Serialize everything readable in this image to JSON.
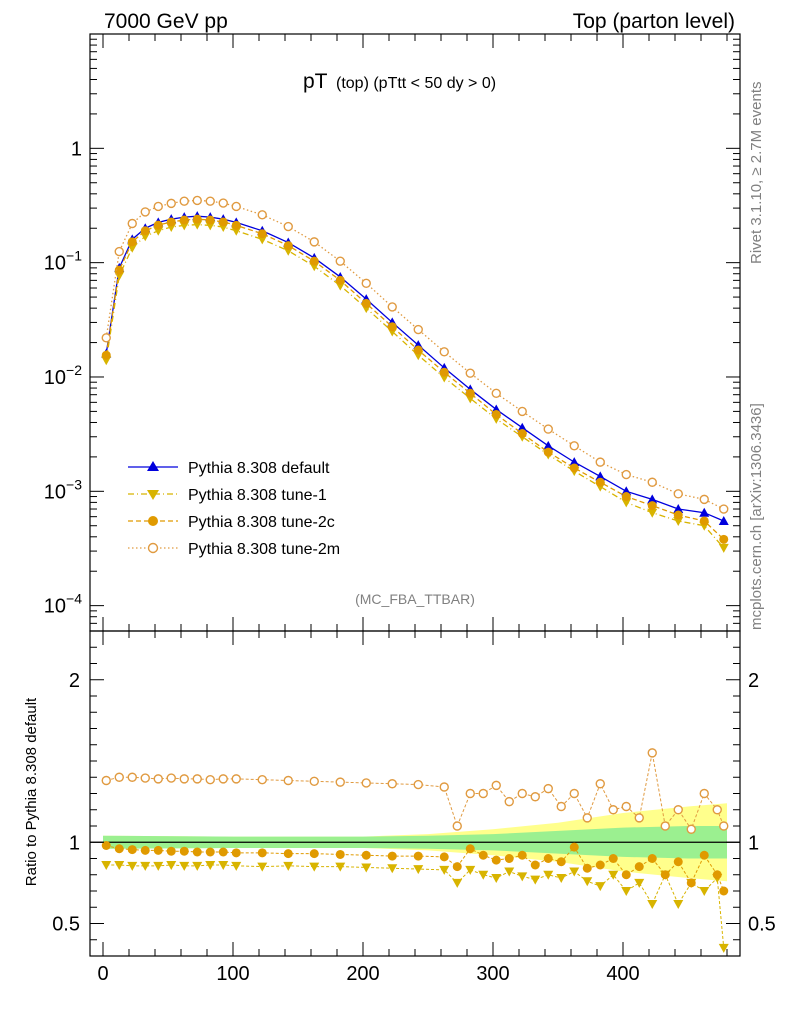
{
  "header": {
    "left": "7000 GeV pp",
    "right": "Top (parton level)"
  },
  "side_labels": {
    "rivet": "Rivet 3.1.10, ≥ 2.7M events",
    "mcplots": "mcplots.cern.ch [arXiv:1306.3436]"
  },
  "chart_data": [
    {
      "type": "line",
      "title_main": "pT",
      "title_sub": "(top)  (pTtt < 50 dy > 0)",
      "analysis": "(MC_FBA_TTBAR)",
      "yscale": "log",
      "ylim": [
        6e-05,
        10
      ],
      "xlim": [
        -10,
        490
      ],
      "yticks": [
        {
          "value": 1,
          "base": "1",
          "exp": ""
        },
        {
          "value": 0.1,
          "base": "10",
          "exp": "−1"
        },
        {
          "value": 0.01,
          "base": "10",
          "exp": "−2"
        },
        {
          "value": 0.001,
          "base": "10",
          "exp": "−3"
        },
        {
          "value": 0.0001,
          "base": "10",
          "exp": "−4"
        }
      ],
      "legend": [
        "Pythia 8.308 default",
        "Pythia 8.308 tune-1",
        "Pythia 8.308 tune-2c",
        "Pythia 8.308 tune-2m"
      ],
      "series": [
        {
          "name": "Pythia 8.308 default",
          "color": "#0000dd",
          "marker": "triangle-up",
          "style": "solid",
          "x": [
            2.5,
            12.5,
            22.5,
            32.5,
            42.5,
            52.5,
            62.5,
            72.5,
            82.5,
            92.5,
            102.5,
            122.5,
            142.5,
            162.5,
            182.5,
            202.5,
            222.5,
            242.5,
            262.5,
            282.5,
            302.5,
            322.5,
            342.5,
            362.5,
            382.5,
            402.5,
            422.5,
            442.5,
            462.5,
            477.5
          ],
          "y": [
            0.016,
            0.09,
            0.16,
            0.2,
            0.225,
            0.24,
            0.25,
            0.255,
            0.25,
            0.24,
            0.225,
            0.19,
            0.15,
            0.11,
            0.075,
            0.048,
            0.03,
            0.019,
            0.012,
            0.0078,
            0.0052,
            0.0036,
            0.0025,
            0.0018,
            0.00135,
            0.001,
            0.00085,
            0.0007,
            0.00065,
            0.00055
          ]
        },
        {
          "name": "Pythia 8.308 tune-1",
          "color": "#d8b400",
          "marker": "triangle-down",
          "style": "dashdot",
          "x": [
            2.5,
            12.5,
            22.5,
            32.5,
            42.5,
            52.5,
            62.5,
            72.5,
            82.5,
            92.5,
            102.5,
            122.5,
            142.5,
            162.5,
            182.5,
            202.5,
            222.5,
            242.5,
            262.5,
            282.5,
            302.5,
            322.5,
            342.5,
            362.5,
            382.5,
            402.5,
            422.5,
            442.5,
            462.5,
            477.5
          ],
          "y": [
            0.014,
            0.077,
            0.135,
            0.17,
            0.19,
            0.205,
            0.212,
            0.215,
            0.212,
            0.205,
            0.19,
            0.16,
            0.127,
            0.093,
            0.063,
            0.04,
            0.025,
            0.0155,
            0.0099,
            0.0065,
            0.0043,
            0.003,
            0.0021,
            0.0015,
            0.0011,
            0.0008,
            0.00065,
            0.00055,
            0.0005,
            0.00032
          ]
        },
        {
          "name": "Pythia 8.308 tune-2c",
          "color": "#e09a00",
          "marker": "circle",
          "style": "dashed",
          "x": [
            2.5,
            12.5,
            22.5,
            32.5,
            42.5,
            52.5,
            62.5,
            72.5,
            82.5,
            92.5,
            102.5,
            122.5,
            142.5,
            162.5,
            182.5,
            202.5,
            222.5,
            242.5,
            262.5,
            282.5,
            302.5,
            322.5,
            342.5,
            362.5,
            382.5,
            402.5,
            422.5,
            442.5,
            462.5,
            477.5
          ],
          "y": [
            0.0155,
            0.086,
            0.152,
            0.19,
            0.213,
            0.227,
            0.236,
            0.24,
            0.236,
            0.227,
            0.212,
            0.179,
            0.141,
            0.103,
            0.07,
            0.044,
            0.0275,
            0.0172,
            0.011,
            0.0072,
            0.0047,
            0.0032,
            0.0022,
            0.0016,
            0.0012,
            0.0009,
            0.00075,
            0.00062,
            0.00055,
            0.00038
          ]
        },
        {
          "name": "Pythia 8.308 tune-2m",
          "color": "#e09a40",
          "marker": "circle-open",
          "style": "dotted",
          "x": [
            2.5,
            12.5,
            22.5,
            32.5,
            42.5,
            52.5,
            62.5,
            72.5,
            82.5,
            92.5,
            102.5,
            122.5,
            142.5,
            162.5,
            182.5,
            202.5,
            222.5,
            242.5,
            262.5,
            282.5,
            302.5,
            322.5,
            342.5,
            362.5,
            382.5,
            402.5,
            422.5,
            442.5,
            462.5,
            477.5
          ],
          "y": [
            0.022,
            0.125,
            0.22,
            0.278,
            0.31,
            0.33,
            0.345,
            0.35,
            0.345,
            0.332,
            0.31,
            0.262,
            0.207,
            0.152,
            0.103,
            0.066,
            0.041,
            0.026,
            0.0166,
            0.0108,
            0.0072,
            0.005,
            0.0035,
            0.0025,
            0.0018,
            0.0014,
            0.0012,
            0.00095,
            0.00085,
            0.0007
          ]
        }
      ]
    },
    {
      "type": "line",
      "ylabel": "Ratio to Pythia 8.308 default",
      "ylim": [
        0.3,
        2.3
      ],
      "xlim": [
        -10,
        490
      ],
      "yticks": [
        2,
        1,
        0.5
      ],
      "xticks": [
        0,
        100,
        200,
        300,
        400
      ],
      "band": {
        "x": [
          0,
          100,
          200,
          250,
          300,
          350,
          400,
          450,
          480
        ],
        "inner": [
          0.04,
          0.035,
          0.035,
          0.04,
          0.05,
          0.07,
          0.09,
          0.1,
          0.1
        ],
        "outer": [
          0.04,
          0.035,
          0.035,
          0.05,
          0.08,
          0.12,
          0.18,
          0.22,
          0.24
        ]
      },
      "series": [
        {
          "name": "Pythia 8.308 default",
          "color": "#000000",
          "x": [
            -10,
            490
          ],
          "values": [
            1,
            1
          ]
        },
        {
          "name": "Pythia 8.308 tune-1",
          "color": "#d8b400",
          "marker": "triangle-down",
          "x": [
            2.5,
            12.5,
            22.5,
            32.5,
            42.5,
            52.5,
            62.5,
            72.5,
            82.5,
            92.5,
            102.5,
            122.5,
            142.5,
            162.5,
            182.5,
            202.5,
            222.5,
            242.5,
            262.5,
            272.5,
            282.5,
            292.5,
            302.5,
            312.5,
            322.5,
            332.5,
            342.5,
            352.5,
            362.5,
            372.5,
            382.5,
            392.5,
            402.5,
            412.5,
            422.5,
            432.5,
            442.5,
            452.5,
            462.5,
            472.5,
            477.5
          ],
          "values": [
            0.86,
            0.86,
            0.855,
            0.855,
            0.855,
            0.86,
            0.855,
            0.855,
            0.86,
            0.86,
            0.855,
            0.85,
            0.855,
            0.85,
            0.85,
            0.845,
            0.84,
            0.835,
            0.83,
            0.75,
            0.83,
            0.8,
            0.78,
            0.82,
            0.79,
            0.77,
            0.8,
            0.78,
            0.82,
            0.76,
            0.73,
            0.8,
            0.7,
            0.75,
            0.62,
            0.8,
            0.62,
            0.75,
            0.7,
            0.78,
            0.35
          ]
        },
        {
          "name": "Pythia 8.308 tune-2c",
          "color": "#e09a00",
          "marker": "circle",
          "x": [
            2.5,
            12.5,
            22.5,
            32.5,
            42.5,
            52.5,
            62.5,
            72.5,
            82.5,
            92.5,
            102.5,
            122.5,
            142.5,
            162.5,
            182.5,
            202.5,
            222.5,
            242.5,
            262.5,
            272.5,
            282.5,
            292.5,
            302.5,
            312.5,
            322.5,
            332.5,
            342.5,
            352.5,
            362.5,
            372.5,
            382.5,
            392.5,
            402.5,
            412.5,
            422.5,
            432.5,
            442.5,
            452.5,
            462.5,
            472.5,
            477.5
          ],
          "values": [
            0.98,
            0.96,
            0.955,
            0.95,
            0.95,
            0.945,
            0.945,
            0.94,
            0.94,
            0.94,
            0.935,
            0.935,
            0.93,
            0.93,
            0.925,
            0.92,
            0.915,
            0.915,
            0.91,
            0.85,
            0.96,
            0.92,
            0.89,
            0.9,
            0.92,
            0.86,
            0.9,
            0.88,
            0.97,
            0.84,
            0.86,
            0.9,
            0.8,
            0.85,
            0.9,
            0.8,
            0.88,
            0.75,
            0.92,
            0.8,
            0.7
          ]
        },
        {
          "name": "Pythia 8.308 tune-2m",
          "color": "#e09a40",
          "marker": "circle-open",
          "x": [
            2.5,
            12.5,
            22.5,
            32.5,
            42.5,
            52.5,
            62.5,
            72.5,
            82.5,
            92.5,
            102.5,
            122.5,
            142.5,
            162.5,
            182.5,
            202.5,
            222.5,
            242.5,
            262.5,
            272.5,
            282.5,
            292.5,
            302.5,
            312.5,
            322.5,
            332.5,
            342.5,
            352.5,
            362.5,
            372.5,
            382.5,
            392.5,
            402.5,
            412.5,
            422.5,
            432.5,
            442.5,
            452.5,
            462.5,
            472.5,
            477.5
          ],
          "values": [
            1.38,
            1.4,
            1.4,
            1.395,
            1.39,
            1.395,
            1.39,
            1.39,
            1.385,
            1.39,
            1.39,
            1.385,
            1.38,
            1.375,
            1.37,
            1.365,
            1.36,
            1.355,
            1.34,
            1.1,
            1.3,
            1.3,
            1.35,
            1.25,
            1.3,
            1.28,
            1.33,
            1.22,
            1.3,
            1.15,
            1.36,
            1.2,
            1.22,
            1.15,
            1.55,
            1.1,
            1.2,
            1.08,
            1.3,
            1.2,
            1.1
          ]
        }
      ]
    }
  ]
}
